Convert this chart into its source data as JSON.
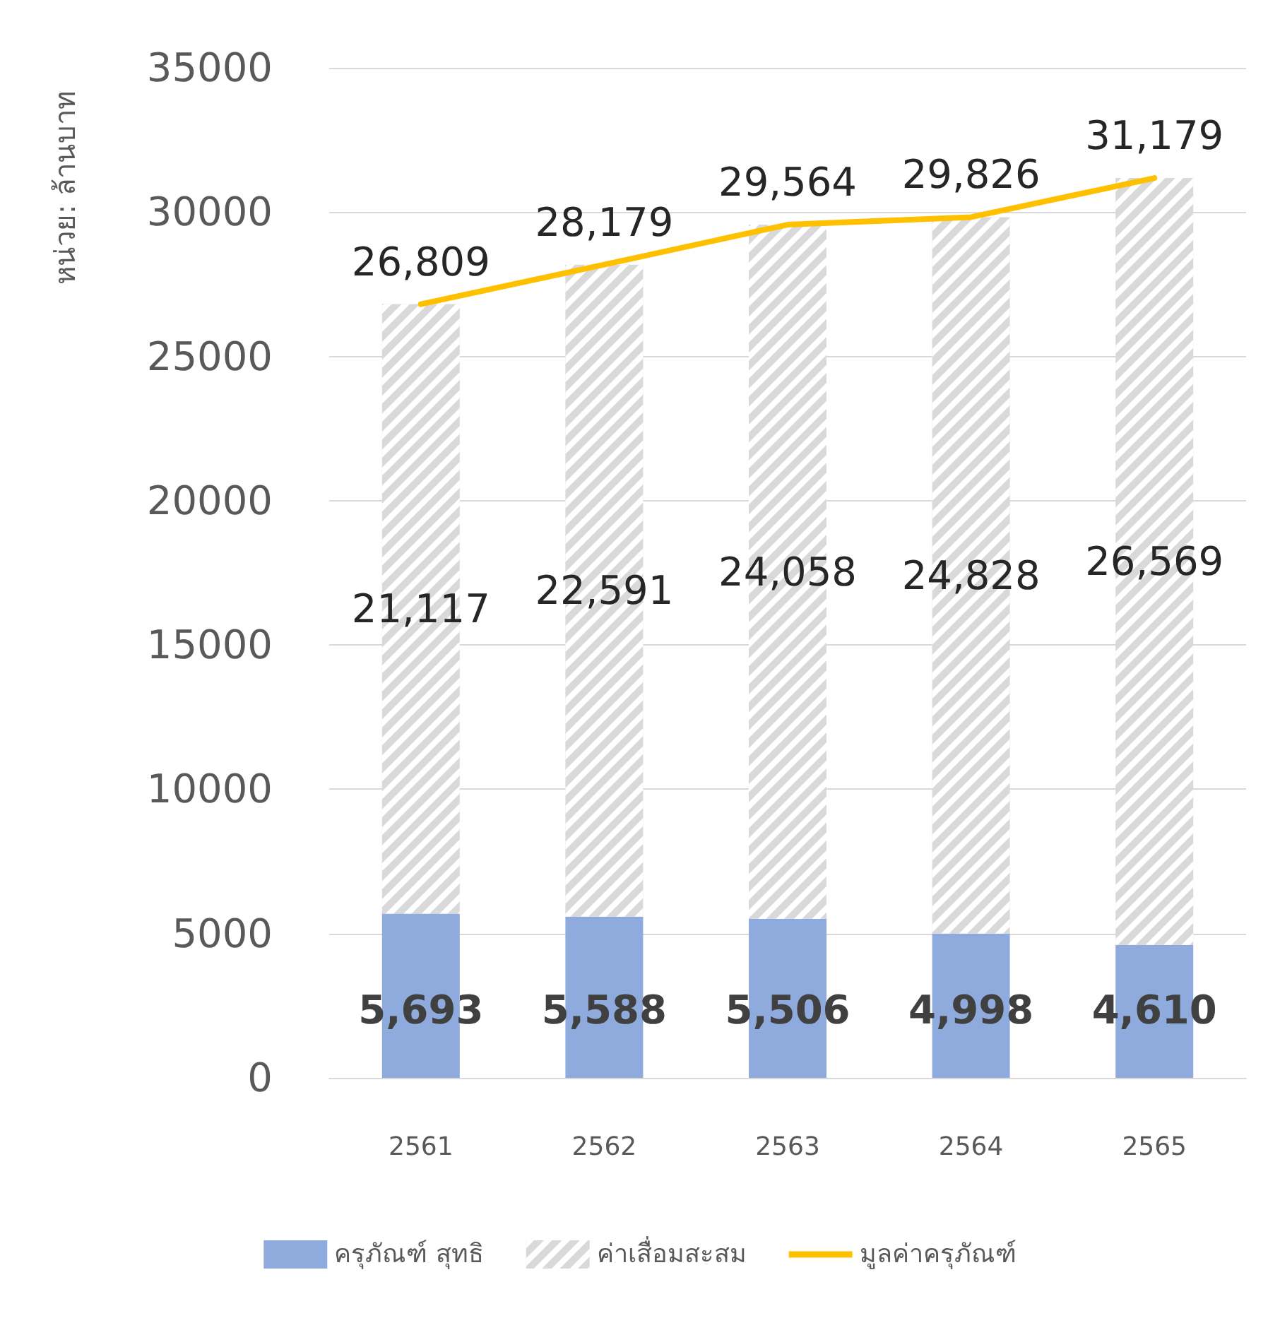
{
  "chart_data": {
    "type": "bar",
    "stacked": true,
    "ylabel": "หน่วย: ล้านบาท",
    "categories": [
      "2561",
      "2562",
      "2563",
      "2564",
      "2565"
    ],
    "series": [
      {
        "name": "ครุภัณฑ์ สุทธิ",
        "color": "#8faadc",
        "values": [
          5693,
          5588,
          5506,
          4998,
          4610
        ],
        "value_labels": [
          "5,693",
          "5,588",
          "5,506",
          "4,998",
          "4,610"
        ]
      },
      {
        "name": "ค่าเสื่อมสะสม",
        "color": "#d9d9d9",
        "values": [
          21117,
          22591,
          24058,
          24828,
          26569
        ],
        "value_labels": [
          "21,117",
          "22,591",
          "24,058",
          "24,828",
          "26,569"
        ]
      },
      {
        "name": "มูลค่าครุภัณฑ์",
        "type": "line",
        "color": "#ffc000",
        "values": [
          26809,
          28179,
          29564,
          29826,
          31179
        ],
        "value_labels": [
          "26,809",
          "28,179",
          "29,564",
          "29,826",
          "31,179"
        ]
      }
    ],
    "ylim": [
      0,
      35000
    ],
    "yticks": [
      0,
      5000,
      10000,
      15000,
      20000,
      25000,
      30000,
      35000
    ],
    "grid": "y",
    "legend": "bottom",
    "marker": "none",
    "line_style": "solid"
  }
}
